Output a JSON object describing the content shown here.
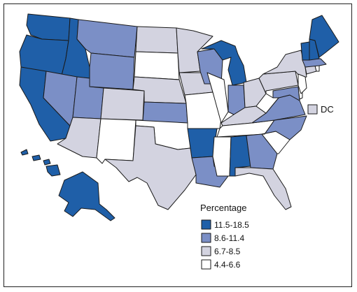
{
  "legend": {
    "title": "Percentage",
    "items": [
      {
        "label": "11.5-18.5",
        "color": "#1f5fa8"
      },
      {
        "label": "8.6-11.4",
        "color": "#7b8fc6"
      },
      {
        "label": "6.7-8.5",
        "color": "#d3d3e0"
      },
      {
        "label": "4.4-6.6",
        "color": "#ffffff"
      }
    ]
  },
  "dc": {
    "label": "DC",
    "color": "#d3d3e0"
  },
  "states": {
    "WA": 0,
    "OR": 0,
    "CA": 0,
    "ID": 0,
    "NV": 1,
    "UT": 1,
    "AZ": 2,
    "MT": 1,
    "WY": 1,
    "CO": 2,
    "NM": 3,
    "ND": 2,
    "SD": 3,
    "NE": 2,
    "KS": 1,
    "OK": 3,
    "TX": 2,
    "MN": 2,
    "IA": 2,
    "MO": 3,
    "AR": 0,
    "LA": 1,
    "WI": 1,
    "IL": 3,
    "MI": 0,
    "IN": 1,
    "OH": 2,
    "KY": 2,
    "TN": 3,
    "MS": 3,
    "AL": 0,
    "GA": 1,
    "FL": 2,
    "SC": 3,
    "NC": 1,
    "VA": 1,
    "WV": 3,
    "PA": 2,
    "NY": 2,
    "VT": 0,
    "NH": 0,
    "ME": 0,
    "MA": 1,
    "CT": 2,
    "RI": 3,
    "NJ": 3,
    "DE": 3,
    "MD": 1,
    "AK": 0,
    "HI": 0
  }
}
